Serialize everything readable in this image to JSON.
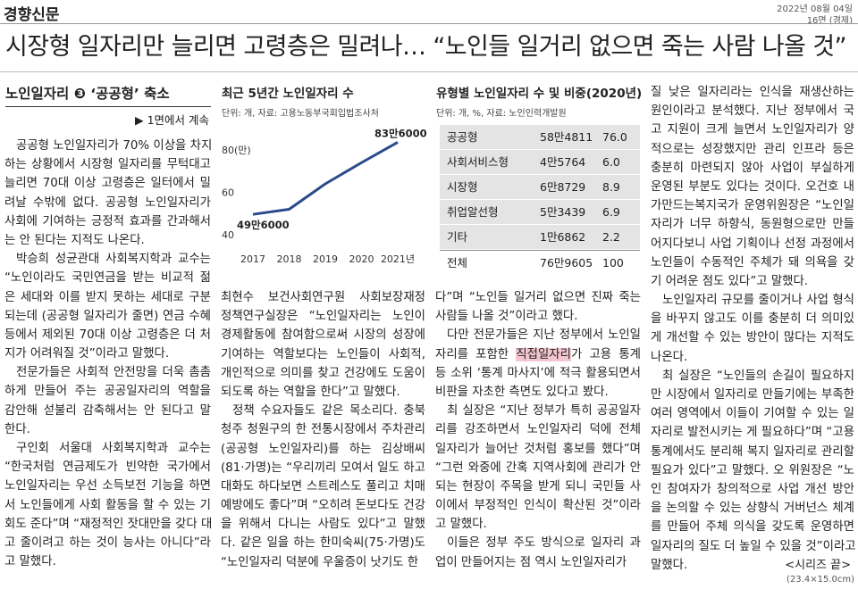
{
  "header": {
    "masthead": "경향신문",
    "date": "2022년 08월 04일",
    "page": "16면 (경제)",
    "headline": "시장형 일자리만 늘리면 고령층은 밀려나… “노인들 일거리 없으면 죽는 사람 나올 것”"
  },
  "subhead": {
    "title": "노인일자리 ❸ ‘공공형’ 축소",
    "continued": "▶ 1면에서 계속"
  },
  "chart_data": {
    "type": "line",
    "title": "최근 5년간 노인일자리 수",
    "source": "단위: 개, 자료: 고용노동부국회입법조사처",
    "categories": [
      "2017",
      "2018",
      "2019",
      "2020",
      "2021년"
    ],
    "values": [
      49.6,
      52,
      64,
      74,
      83.6
    ],
    "value_labels": [
      "49만6000",
      null,
      null,
      null,
      "83만6000"
    ],
    "color": "#2b4a8a",
    "ylim": [
      37,
      88
    ],
    "yticks": [
      40,
      60,
      {
        "value": 80,
        "label": "80(만)"
      }
    ]
  },
  "table": {
    "title": "유형별 노인일자리 수 및 비중(2020년)",
    "source": "단위: 개, %, 자료: 노인인력개발원",
    "rows": [
      [
        "공공형",
        "58만4811",
        "76.0"
      ],
      [
        "사회서비스형",
        "4만5764",
        "6.0"
      ],
      [
        "시장형",
        "6만8729",
        "8.9"
      ],
      [
        "취업알선형",
        "5만3439",
        "6.9"
      ],
      [
        "기타",
        "1만6862",
        "2.2"
      ],
      [
        "전체",
        "76만9605",
        "100"
      ]
    ]
  },
  "columns": [
    {
      "paragraphs": [
        [
          "공공형 노인일자리가 70% 이상을 차지",
          "하는 상황에서 시장형 일자리를 무턱대고",
          "늘리면 70대 이상 고령층은 일터에서 밀",
          "려날 수밖에 없다. 공공형 노인일자리가",
          "사회에 기여하는 긍정적 효과를 간과해서",
          "는 안 된다는 지적도 나온다."
        ],
        [
          "박승희 성균관대 사회복지학과 교수는",
          "“노인이라도 국민연금을 받는 비교적 젊",
          "은 세대와 이를 받지 못하는 세대로 구분",
          "되는데 (공공형 일자리가 줄면) 연금 수혜",
          "등에서 제외된 70대 이상 고령층은 더 처",
          "지가 어려워질 것”이라고 말했다."
        ],
        [
          "전문가들은 사회적 안전망을 더욱 촘촘",
          "하게 만들어 주는 공공일자리의 역할을",
          "감안해 섣불리 감축해서는 안 된다고 말",
          "한다."
        ],
        [
          "구인회 서울대 사회복지학과 교수는",
          "“한국처럼 연금제도가 빈약한 국가에서",
          "노인일자리는 우선 소득보전 기능을 하면",
          "서 노인들에게 사회 활동을 할 수 있는 기",
          "회도 준다”며 “재정적인 잣대만을 갖다 대",
          "고 줄이려고 하는 것이 능사는 아니다”라",
          "고 말했다."
        ]
      ]
    },
    {
      "paragraphs": [
        [
          "최현수 보건사회연구원 사회보장재정",
          "정책연구실장은 “노인일자리는 노인이",
          "경제활동에 참여함으로써 시장의 성장에",
          "기여하는 역할보다는 노인들이 사회적,",
          "개인적으로 의미를 찾고 건강에도 도움이",
          "되도록 하는 역할을 한다”고 말했다."
        ],
        [
          "정책 수요자들도 같은 목소리다. 충북",
          "청주 청원구의 한 전통시장에서 주차관리",
          "(공공형 노인일자리)를 하는 김상배씨",
          "(81·가명)는 “우리끼리 모여서 일도 하고",
          "대화도 하다보면 스트레스도 풀리고 치매",
          "예방에도 좋다”며 “오히려 돈보다도 건강",
          "을 위해서 다니는 사람도 있다”고 말했",
          "다. 같은 일을 하는 한미숙씨(75·가명)도",
          "“노인일자리 덕분에 우울증이 낫기도 한"
        ]
      ]
    },
    {
      "paragraphs": [
        [
          "다”며 “노인들 일거리 없으면 진짜 죽는",
          "사람들 나올 것”이라고 했다."
        ],
        [
          "다만 전문가들은 지난 정부에서 노인일",
          [
            "자리를 포함한 ",
            "직접일자리",
            "가 고용 통계"
          ],
          "등 소위 ‘통계 마사지’에 적극 활용되면서",
          "비판을 자초한 측면도 있다고 봤다."
        ],
        [
          "최 실장은 “지난 정부가 특히 공공일자",
          "리를 강조하면서 노인일자리 덕에 전체",
          "일자리가 늘어난 것처럼 홍보를 했다”며",
          "“그런 와중에 간혹 지역사회에 관리가 안",
          "되는 현장이 주목을 받게 되니 국민들 사",
          "이에서 부정적인 인식이 확산된 것”이라",
          "고 말했다."
        ],
        [
          "이들은 정부 주도 방식으로 일자리 과",
          "업이 만들어지는 점 역시 노인일자리가"
        ]
      ]
    },
    {
      "paragraphs": [
        [
          "질 낮은 일자리라는 인식을 재생산하는",
          "원인이라고 분석했다. 지난 정부에서 국",
          "고 지원이 크게 늘면서 노인일자리가 양",
          "적으로는 성장했지만 관리 인프라 등은",
          "충분히 마련되지 않아 사업이 부실하게",
          "운영된 부분도 있다는 것이다. 오건호 내",
          "가만드는복지국가 운영위원장은 “노인일",
          "자리가 너무 하향식, 동원형으로만 만들",
          "어지다보니 사업 기획이나 선정 과정에서",
          "노인들이 수동적인 주체가 돼 의욕을 갖",
          "기 어려운 점도 있다”고 말했다."
        ],
        [
          "노인일자리 규모를 줄이거나 사업 형식",
          "을 바꾸지 않고도 이를 충분히 더 의미있",
          "게 개선할 수 있는 방안이 많다는 지적도",
          "나온다."
        ],
        [
          "최 실장은 “노인들의 손길이 필요하지",
          "만 시장에서 일자리로 만들기에는 부족한",
          "여러 영역에서 이들이 기여할 수 있는 일",
          "자리로 발전시키는 게 필요하다”며 “고용",
          "통계에서도 분리해 복지 일자리로 관리할",
          "필요가 있다”고 말했다. 오 위원장은 “노",
          "인 참여자가 창의적으로 사업 개선 방안",
          "을 논의할 수 있는 상향식 거버넌스 체계",
          "를 만들어 주체 의식을 갖도록 운영하면",
          "일자리의 질도 더 높일 수 있을 것”이라고",
          "말했다."
        ]
      ]
    }
  ],
  "footer": {
    "series_end": "<시리즈 끝>",
    "size": "(23.4×15.0cm)"
  }
}
